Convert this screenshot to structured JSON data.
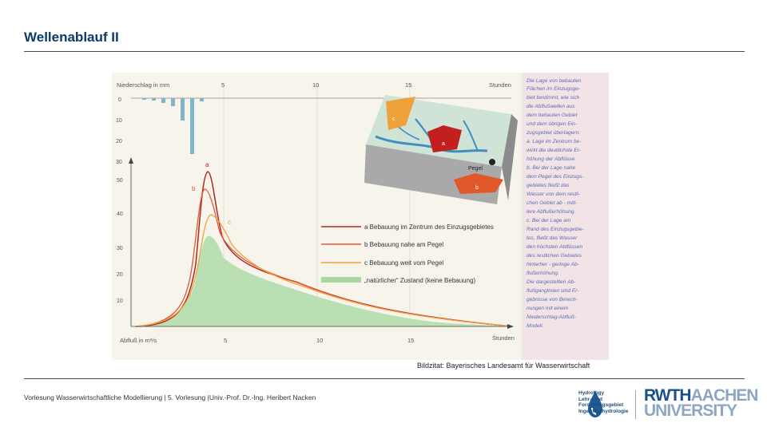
{
  "slide": {
    "title": "Wellenablauf II",
    "caption": "Bildzitat: Bayerisches Landesamt für Wasserwirtschaft",
    "footer": "Vorlesung Wasserwirtschaftliche Modellierung | 5. Vorlesung |Univ.-Prof. Dr.-Ing. Heribert Nacken"
  },
  "figure": {
    "precip_label": "Niederschlag in mm",
    "precip_ticks": [
      "0",
      "10",
      "20",
      "30"
    ],
    "flow_ticks": [
      "50",
      "40",
      "30",
      "20",
      "10"
    ],
    "flow_label": "Abfluß in m³/s",
    "time_ticks": [
      "5",
      "10",
      "15"
    ],
    "time_unit": "Stunden",
    "curve_letters": [
      "a",
      "b",
      "c"
    ],
    "map_labels": {
      "a": "a",
      "b": "b",
      "c": "c",
      "pegel": "Pegel"
    },
    "legend": [
      {
        "key": "a",
        "text": "a  Bebauung im Zentrum des Einzugsgebietes",
        "color": "#b3261e"
      },
      {
        "key": "b",
        "text": "b  Bebauung nahe am Pegel",
        "color": "#e0573a"
      },
      {
        "key": "c",
        "text": "c  Bebauung weit vom Pegel",
        "color": "#f0a23a"
      },
      {
        "key": "n",
        "text": "„natürlicher“ Zustand (keine Bebauung)",
        "color": "#a9d7a2"
      }
    ],
    "side_text": [
      "Die Lage von bebauten",
      "Flächen im Einzugsge-",
      "biet bestimmt, wie sich",
      "die Abflußwellen aus",
      "dem bebauten Gebiet",
      "und dem übrigen Ein-",
      "zugsgebiet überlagern:",
      "a. Lage im Zentrum be-",
      "wirkt die deutlichste Er-",
      "höhung der Abflüsse.",
      "b. Bei der Lage nahe",
      "dem Pegel des Einzugs-",
      "gebietes fließt das",
      "Wasser von dem restli-",
      "chen Gebiet ab - mitt-",
      "lere Abflußerhöhung.",
      "c. Bei der Lage am",
      "Rand des Einzugsgebie-",
      "tes, fließt das Wasser",
      "den höchsten Abflüssen",
      "des restlichen Gebietes",
      "hinterher - geringe Ab-",
      "flußerhöhung.",
      "Die dargestellten Ab-",
      "flußganglinien sind Er-",
      "gebnisse von Berech-",
      "nungen mit einem",
      "Niederschlag-Abfluß-",
      "Modell."
    ]
  },
  "logos": {
    "hydrology": [
      "Hydrology",
      "Lehr- und",
      "Forschungsgebiet",
      "Ingenieurhydrologie"
    ],
    "rwth_main": "RWTH",
    "rwth_aachen": "AACHEN",
    "rwth_university": "UNIVERSITY",
    "colors": {
      "blue": "#1b4f8a",
      "lightblue": "#8fa6c2"
    }
  }
}
